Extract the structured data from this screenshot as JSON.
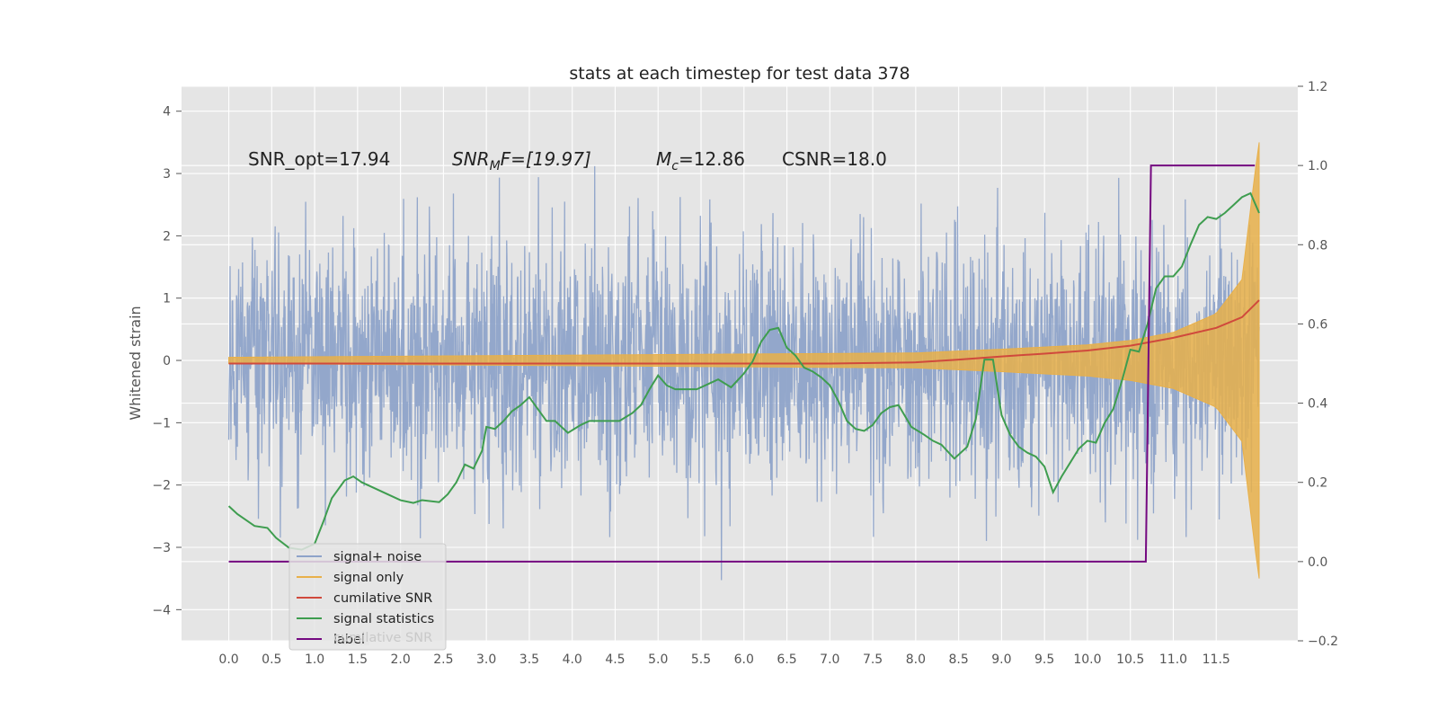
{
  "chart_data": {
    "type": "line",
    "title": "stats at each timestep for test data 378",
    "ylabel": "Whitened strain",
    "xlim": [
      -0.55,
      12.45
    ],
    "ylim": [
      -4.5,
      4.4
    ],
    "y2lim": [
      -0.2,
      1.2
    ],
    "grid": true,
    "legend_position": "lower-left",
    "x_ticks": [
      "0.0",
      "0.5",
      "1.0",
      "1.5",
      "2.0",
      "2.5",
      "3.0",
      "3.5",
      "4.0",
      "4.5",
      "5.0",
      "5.5",
      "6.0",
      "6.5",
      "7.0",
      "7.5",
      "8.0",
      "8.5",
      "9.0",
      "9.5",
      "10.0",
      "10.5",
      "11.0",
      "11.5"
    ],
    "y_ticks": [
      "4",
      "3",
      "2",
      "1",
      "0",
      "−1",
      "−2",
      "−3",
      "−4"
    ],
    "y2_ticks": [
      "1.2",
      "1.0",
      "0.8",
      "0.6",
      "0.4",
      "0.2",
      "0.0",
      "−0.2"
    ],
    "annotations": [
      {
        "base": "SNR_opt=17.94",
        "sub": ""
      },
      {
        "base": "SNR",
        "sub": "M",
        "rest": "F=[19.97]"
      },
      {
        "base": "M",
        "sub": "c",
        "rest": "=12.86"
      },
      {
        "base": "CSNR=18.0",
        "sub": ""
      }
    ],
    "series": [
      {
        "name": "signal+ noise",
        "color": "#8ea3c9",
        "axis": "left",
        "kind": "noise",
        "x_range": [
          0,
          12
        ],
        "amplitude_sigma": 1.0
      },
      {
        "name": "signal only",
        "color": "#e8b04a",
        "axis": "left",
        "kind": "chirp",
        "x_range": [
          0,
          12
        ],
        "envelope": {
          "x": [
            0,
            8.0,
            9.0,
            10.0,
            10.5,
            11.0,
            11.5,
            11.8,
            11.95,
            12.0
          ],
          "y": [
            0.05,
            0.12,
            0.18,
            0.25,
            0.32,
            0.45,
            0.75,
            1.3,
            3.0,
            3.5
          ]
        }
      },
      {
        "name": "cumilative SNR",
        "color": "#d0493c",
        "axis": "right",
        "x": [
          0,
          1,
          2,
          3,
          4,
          5,
          6,
          7,
          8.0,
          8.5,
          9.0,
          9.5,
          10.0,
          10.5,
          11.0,
          11.5,
          11.8,
          12.0
        ],
        "y": [
          0.5,
          0.5,
          0.5,
          0.5,
          0.5,
          0.5,
          0.5,
          0.5,
          0.503,
          0.51,
          0.518,
          0.525,
          0.533,
          0.545,
          0.565,
          0.59,
          0.617,
          0.66
        ]
      },
      {
        "name": "signal statistics",
        "color": "#3e9d4f",
        "axis": "right",
        "x": [
          0,
          0.1,
          0.3,
          0.45,
          0.55,
          0.7,
          0.85,
          1.0,
          1.1,
          1.2,
          1.35,
          1.45,
          1.55,
          1.7,
          1.85,
          2.0,
          2.15,
          2.25,
          2.45,
          2.55,
          2.65,
          2.75,
          2.85,
          2.95,
          3.0,
          3.1,
          3.2,
          3.3,
          3.4,
          3.5,
          3.6,
          3.7,
          3.8,
          3.95,
          4.1,
          4.2,
          4.3,
          4.45,
          4.55,
          4.7,
          4.8,
          4.9,
          5.0,
          5.1,
          5.2,
          5.35,
          5.45,
          5.6,
          5.7,
          5.85,
          6.0,
          6.1,
          6.2,
          6.3,
          6.4,
          6.5,
          6.6,
          6.7,
          6.8,
          6.9,
          7.0,
          7.1,
          7.2,
          7.3,
          7.4,
          7.5,
          7.6,
          7.7,
          7.8,
          7.95,
          8.1,
          8.2,
          8.3,
          8.45,
          8.6,
          8.7,
          8.8,
          8.9,
          9.0,
          9.1,
          9.2,
          9.3,
          9.4,
          9.5,
          9.6,
          9.7,
          9.8,
          9.9,
          10.0,
          10.1,
          10.2,
          10.3,
          10.4,
          10.5,
          10.6,
          10.7,
          10.8,
          10.9,
          11.0,
          11.1,
          11.2,
          11.3,
          11.4,
          11.5,
          11.6,
          11.7,
          11.8,
          11.9,
          12.0
        ],
        "y": [
          0.14,
          0.12,
          0.09,
          0.085,
          0.06,
          0.035,
          0.03,
          0.045,
          0.1,
          0.16,
          0.205,
          0.215,
          0.2,
          0.185,
          0.17,
          0.155,
          0.148,
          0.155,
          0.15,
          0.17,
          0.2,
          0.245,
          0.235,
          0.28,
          0.34,
          0.335,
          0.355,
          0.38,
          0.395,
          0.415,
          0.385,
          0.355,
          0.355,
          0.325,
          0.345,
          0.355,
          0.355,
          0.355,
          0.355,
          0.375,
          0.395,
          0.435,
          0.47,
          0.445,
          0.435,
          0.435,
          0.435,
          0.45,
          0.46,
          0.44,
          0.475,
          0.505,
          0.555,
          0.585,
          0.59,
          0.54,
          0.52,
          0.49,
          0.48,
          0.465,
          0.445,
          0.405,
          0.355,
          0.335,
          0.33,
          0.345,
          0.375,
          0.39,
          0.395,
          0.34,
          0.32,
          0.305,
          0.295,
          0.26,
          0.29,
          0.36,
          0.51,
          0.51,
          0.37,
          0.32,
          0.29,
          0.275,
          0.265,
          0.24,
          0.175,
          0.215,
          0.25,
          0.285,
          0.305,
          0.3,
          0.35,
          0.385,
          0.455,
          0.535,
          0.53,
          0.6,
          0.69,
          0.72,
          0.72,
          0.745,
          0.8,
          0.85,
          0.87,
          0.865,
          0.88,
          0.9,
          0.92,
          0.93,
          0.88
        ]
      },
      {
        "name": "label",
        "color": "#740880",
        "axis": "right",
        "x": [
          0,
          10.68,
          10.74,
          11.95
        ],
        "y": [
          0.0,
          0.0,
          1.0,
          1.0
        ]
      }
    ],
    "legend_ghost_text": "cumilative SNR"
  }
}
